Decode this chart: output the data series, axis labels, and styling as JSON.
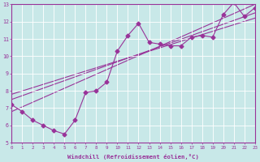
{
  "scatter_x": [
    0,
    1,
    2,
    3,
    4,
    5,
    6,
    7,
    8,
    9,
    10,
    11,
    12,
    13,
    14,
    15,
    16,
    17,
    18,
    19,
    20,
    21,
    22,
    23
  ],
  "scatter_y": [
    7.2,
    6.8,
    6.3,
    6.0,
    5.7,
    5.5,
    6.3,
    7.9,
    8.0,
    8.5,
    10.3,
    11.2,
    11.9,
    10.8,
    10.7,
    10.6,
    10.6,
    11.1,
    11.2,
    11.1,
    12.4,
    13.1,
    12.3,
    12.8
  ],
  "reg_lines": [
    {
      "x": [
        0,
        23
      ],
      "y": [
        7.8,
        12.2
      ]
    },
    {
      "x": [
        0,
        23
      ],
      "y": [
        7.5,
        12.5
      ]
    },
    {
      "x": [
        0,
        23
      ],
      "y": [
        6.8,
        13.0
      ]
    }
  ],
  "color": "#993399",
  "bg_color": "#c8e8e8",
  "grid_color": "#ffffff",
  "xlabel": "Windchill (Refroidissement éolien,°C)",
  "xlim": [
    0,
    23
  ],
  "ylim": [
    5,
    13
  ],
  "xticks": [
    0,
    1,
    2,
    3,
    4,
    5,
    6,
    7,
    8,
    9,
    10,
    11,
    12,
    13,
    14,
    15,
    16,
    17,
    18,
    19,
    20,
    21,
    22,
    23
  ],
  "yticks": [
    5,
    6,
    7,
    8,
    9,
    10,
    11,
    12,
    13
  ],
  "marker": "D",
  "markersize": 2.5,
  "linewidth": 0.8
}
